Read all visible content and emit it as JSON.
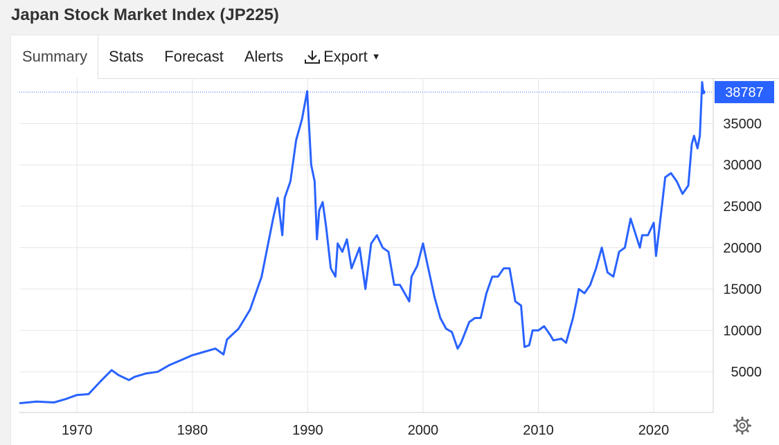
{
  "header": {
    "title": "Japan Stock Market Index (JP225)"
  },
  "tabs": [
    {
      "label": "Summary",
      "active": true
    },
    {
      "label": "Stats"
    },
    {
      "label": "Forecast"
    },
    {
      "label": "Alerts"
    },
    {
      "label": "Export",
      "icon": "download-icon"
    }
  ],
  "colors": {
    "line": "#2962ff",
    "grid": "#e6e6e6",
    "badge": "#2962ff",
    "text": "#222222"
  },
  "chart_data": {
    "type": "line",
    "title": "",
    "xlabel": "",
    "ylabel": "",
    "xlim": [
      1965,
      2024.8
    ],
    "ylim": [
      0,
      40000
    ],
    "xticks": [
      1970,
      1980,
      1990,
      2000,
      2010,
      2020
    ],
    "yticks": [
      5000,
      10000,
      15000,
      20000,
      25000,
      30000,
      35000
    ],
    "grid": true,
    "last_value": 38787,
    "last_value_label": "38787",
    "series": [
      {
        "x": [
          1965.0,
          1966.5,
          1968.0,
          1969.0,
          1970.0,
          1971.0,
          1972.0,
          1973.0,
          1973.6,
          1974.5,
          1975.0,
          1976.0,
          1977.0,
          1978.0,
          1979.0,
          1980.0,
          1981.0,
          1982.0,
          1982.7,
          1983.0,
          1984.0,
          1985.0,
          1986.0,
          1987.0,
          1987.4,
          1987.8,
          1988.0,
          1988.5,
          1989.0,
          1989.5,
          1989.95,
          1990.3,
          1990.6,
          1990.8,
          1991.0,
          1991.3,
          1991.6,
          1992.0,
          1992.4,
          1992.6,
          1993.0,
          1993.4,
          1993.8,
          1994.5,
          1995.0,
          1995.5,
          1996.0,
          1996.5,
          1997.0,
          1997.5,
          1998.0,
          1998.8,
          1999.0,
          1999.5,
          2000.0,
          2000.3,
          2001.0,
          2001.5,
          2002.0,
          2002.5,
          2003.0,
          2003.3,
          2004.0,
          2004.5,
          2005.0,
          2005.5,
          2006.0,
          2006.5,
          2007.0,
          2007.5,
          2008.0,
          2008.5,
          2008.8,
          2009.2,
          2009.5,
          2010.0,
          2010.5,
          2011.0,
          2011.3,
          2012.0,
          2012.4,
          2013.0,
          2013.3,
          2013.5,
          2014.0,
          2014.5,
          2015.0,
          2015.5,
          2016.0,
          2016.5,
          2017.0,
          2017.5,
          2018.0,
          2018.8,
          2019.0,
          2019.5,
          2020.0,
          2020.2,
          2020.5,
          2021.0,
          2021.5,
          2022.0,
          2022.5,
          2023.0,
          2023.3,
          2023.5,
          2023.8,
          2024.0,
          2024.2,
          2024.3
        ],
        "y": [
          1200,
          1400,
          1300,
          1700,
          2200,
          2300,
          3800,
          5200,
          4600,
          4000,
          4400,
          4800,
          5000,
          5800,
          6400,
          7000,
          7400,
          7800,
          7100,
          8900,
          10200,
          12500,
          16500,
          23500,
          26000,
          21500,
          26000,
          28000,
          33000,
          35500,
          38900,
          30000,
          28000,
          21000,
          24500,
          25500,
          22500,
          17500,
          16500,
          20500,
          19500,
          21000,
          17500,
          20000,
          15000,
          20500,
          21500,
          20000,
          19500,
          15500,
          15500,
          13500,
          16500,
          17800,
          20500,
          18500,
          14000,
          11500,
          10200,
          9800,
          7800,
          8500,
          11000,
          11500,
          11500,
          14500,
          16500,
          16500,
          17500,
          17500,
          13500,
          13000,
          8000,
          8200,
          10000,
          10000,
          10500,
          9500,
          8800,
          9000,
          8500,
          11500,
          13500,
          15000,
          14500,
          15500,
          17500,
          20000,
          17000,
          16500,
          19500,
          20000,
          23500,
          20000,
          21500,
          21500,
          23000,
          19000,
          22500,
          28500,
          29000,
          28000,
          26500,
          27500,
          32500,
          33500,
          32000,
          33500,
          40000,
          38787
        ]
      }
    ]
  },
  "settings": {
    "icon": "gear-icon"
  }
}
